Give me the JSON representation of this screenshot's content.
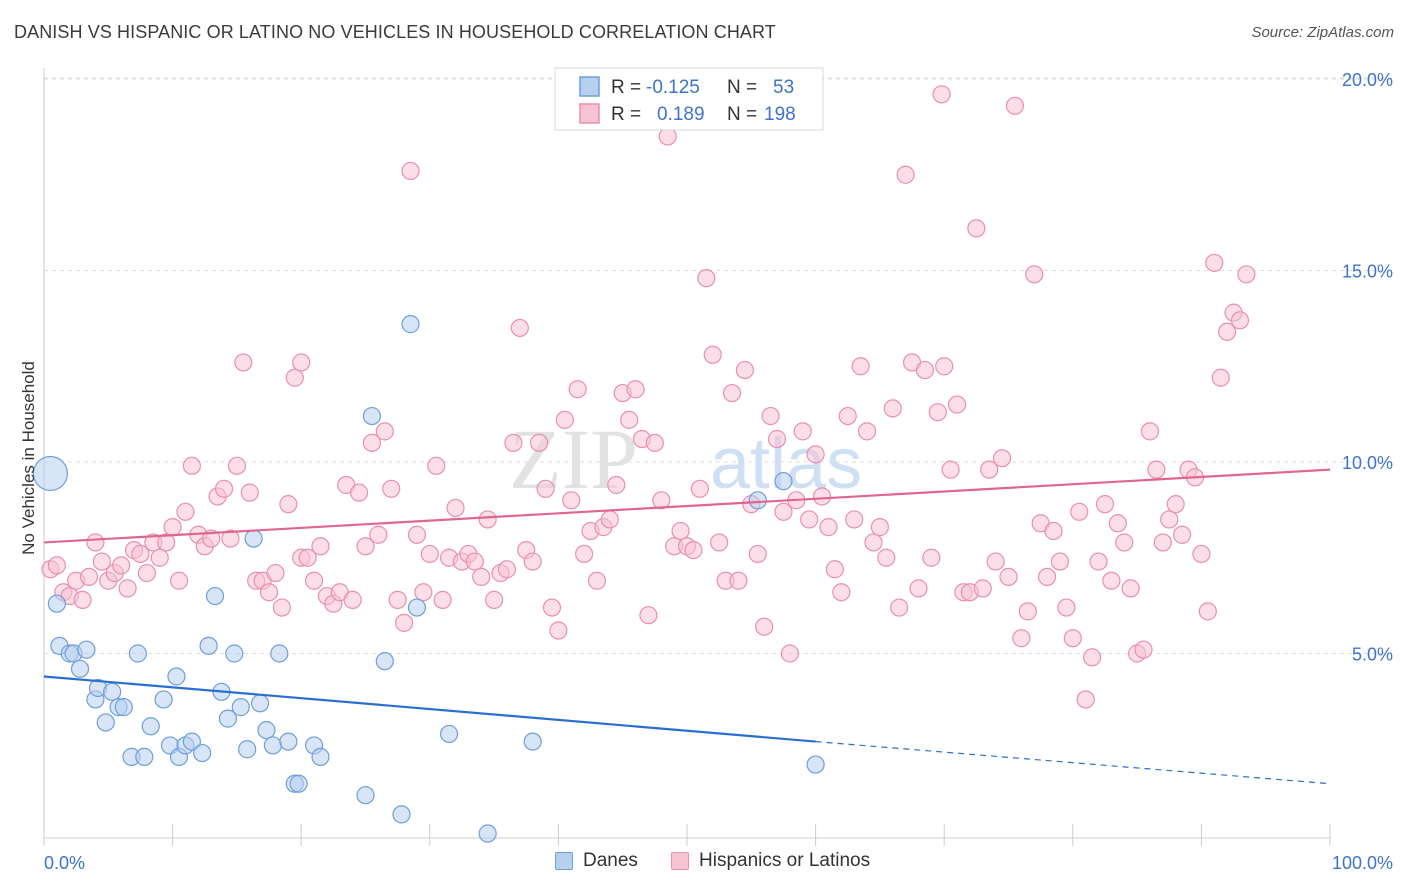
{
  "header": {
    "title": "DANISH VS HISPANIC OR LATINO NO VEHICLES IN HOUSEHOLD CORRELATION CHART",
    "source": "Source: ZipAtlas.com"
  },
  "watermark": {
    "part1": "ZIP",
    "part2": "atlas"
  },
  "colors": {
    "danes_fill": "#b8d0f0",
    "danes_stroke": "#6e9fd8",
    "danes_line": "#2a6fd0",
    "hisp_fill": "#f7c3d3",
    "hisp_stroke": "#e890ad",
    "hisp_line": "#e0668f",
    "value_text": "#3d74c9",
    "grid": "#dedede"
  },
  "legend": {
    "rows": [
      {
        "r_label": "R =",
        "r_value": "-0.125",
        "n_label": "N =",
        "n_value": "53"
      },
      {
        "r_label": "R =",
        "r_value": "0.189",
        "n_label": "N =",
        "n_value": "198"
      }
    ]
  },
  "bottom_legend": {
    "danes": "Danes",
    "hisp": "Hispanics or Latinos"
  },
  "chart_data": {
    "type": "scatter",
    "title": "DANISH VS HISPANIC OR LATINO NO VEHICLES IN HOUSEHOLD CORRELATION CHART",
    "xlabel": "",
    "ylabel": "No Vehicles in Household",
    "xlim": [
      0,
      100
    ],
    "ylim": [
      0,
      20.5
    ],
    "x_tick_labels": [
      "0.0%",
      "100.0%"
    ],
    "y_ticks": [
      5,
      10,
      15,
      20
    ],
    "y_tick_labels": [
      "5.0%",
      "10.0%",
      "15.0%",
      "20.0%"
    ],
    "grid": "horizontal dashed",
    "legend_position": "top-center",
    "series": [
      {
        "name": "Danes",
        "r": -0.125,
        "n": 53,
        "trend": {
          "x0": 0,
          "y0": 4.4,
          "x1": 60,
          "y1": 2.7,
          "dash_to_x": 100,
          "dash_to_y": 1.6
        },
        "points": [
          [
            0.5,
            9.7,
            "large"
          ],
          [
            1,
            6.3
          ],
          [
            1.2,
            5.2
          ],
          [
            2,
            5.0
          ],
          [
            2.3,
            5.0
          ],
          [
            2.8,
            4.6
          ],
          [
            3.3,
            5.1
          ],
          [
            4,
            3.8
          ],
          [
            4.2,
            4.1
          ],
          [
            4.8,
            3.2
          ],
          [
            5.3,
            4.0
          ],
          [
            5.8,
            3.6
          ],
          [
            6.2,
            3.6
          ],
          [
            6.8,
            2.3
          ],
          [
            7.3,
            5.0
          ],
          [
            7.8,
            2.3
          ],
          [
            8.3,
            3.1
          ],
          [
            9.3,
            3.8
          ],
          [
            9.8,
            2.6
          ],
          [
            10.3,
            4.4
          ],
          [
            10.5,
            2.3
          ],
          [
            11,
            2.6
          ],
          [
            11.5,
            2.7
          ],
          [
            12.3,
            2.4
          ],
          [
            12.8,
            5.2
          ],
          [
            13.3,
            6.5
          ],
          [
            13.8,
            4.0
          ],
          [
            14.3,
            3.3
          ],
          [
            14.8,
            5.0
          ],
          [
            15.3,
            3.6
          ],
          [
            15.8,
            2.5
          ],
          [
            16.3,
            8.0
          ],
          [
            16.8,
            3.7
          ],
          [
            17.3,
            3.0
          ],
          [
            17.8,
            2.6
          ],
          [
            18.3,
            5.0
          ],
          [
            19.0,
            2.7
          ],
          [
            19.5,
            1.6
          ],
          [
            19.8,
            1.6
          ],
          [
            21.0,
            2.6
          ],
          [
            21.5,
            2.3
          ],
          [
            25.0,
            1.3
          ],
          [
            25.5,
            11.2
          ],
          [
            26.5,
            4.8
          ],
          [
            27.8,
            0.8
          ],
          [
            28.5,
            13.6
          ],
          [
            29.0,
            6.2
          ],
          [
            31.5,
            2.9
          ],
          [
            34.5,
            0.3
          ],
          [
            38.0,
            2.7
          ],
          [
            60.0,
            2.1
          ],
          [
            57.5,
            9.5
          ],
          [
            55.5,
            9.0
          ]
        ]
      },
      {
        "name": "Hispanics or Latinos",
        "r": 0.189,
        "n": 198,
        "trend": {
          "x0": 0,
          "y0": 7.9,
          "x1": 100,
          "y1": 9.8
        },
        "points": [
          [
            0.5,
            7.2
          ],
          [
            1,
            7.3
          ],
          [
            1.5,
            6.6
          ],
          [
            2,
            6.5
          ],
          [
            2.5,
            6.9
          ],
          [
            3,
            6.4
          ],
          [
            3.5,
            7.0
          ],
          [
            4,
            7.9
          ],
          [
            4.5,
            7.4
          ],
          [
            5,
            6.9
          ],
          [
            5.5,
            7.1
          ],
          [
            6,
            7.3
          ],
          [
            6.5,
            6.7
          ],
          [
            7,
            7.7
          ],
          [
            7.5,
            7.6
          ],
          [
            8,
            7.1
          ],
          [
            8.5,
            7.9
          ],
          [
            9,
            7.5
          ],
          [
            9.5,
            7.9
          ],
          [
            10,
            8.3
          ],
          [
            10.5,
            6.9
          ],
          [
            11,
            8.7
          ],
          [
            11.5,
            9.9
          ],
          [
            12,
            8.1
          ],
          [
            12.5,
            7.8
          ],
          [
            13,
            8.0
          ],
          [
            13.5,
            9.1
          ],
          [
            14,
            9.3
          ],
          [
            14.5,
            8.0
          ],
          [
            15,
            9.9
          ],
          [
            15.5,
            12.6
          ],
          [
            16,
            9.2
          ],
          [
            16.5,
            6.9
          ],
          [
            17,
            6.9
          ],
          [
            17.5,
            6.6
          ],
          [
            18,
            7.1
          ],
          [
            18.5,
            6.2
          ],
          [
            19,
            8.9
          ],
          [
            19.5,
            12.2
          ],
          [
            20,
            7.5
          ],
          [
            20.5,
            7.5
          ],
          [
            21,
            6.9
          ],
          [
            21.5,
            7.8
          ],
          [
            22,
            6.5
          ],
          [
            22.5,
            6.3
          ],
          [
            23,
            6.6
          ],
          [
            23.5,
            9.4
          ],
          [
            24,
            6.4
          ],
          [
            24.5,
            9.2
          ],
          [
            25,
            7.8
          ],
          [
            25.5,
            10.5
          ],
          [
            26,
            8.1
          ],
          [
            26.5,
            10.8
          ],
          [
            27,
            9.3
          ],
          [
            27.5,
            6.4
          ],
          [
            28,
            5.8
          ],
          [
            28.5,
            17.6
          ],
          [
            29,
            8.1
          ],
          [
            29.5,
            6.6
          ],
          [
            30,
            7.6
          ],
          [
            30.5,
            9.9
          ],
          [
            31,
            6.4
          ],
          [
            31.5,
            7.5
          ],
          [
            32,
            8.8
          ],
          [
            32.5,
            7.4
          ],
          [
            33,
            7.6
          ],
          [
            33.5,
            7.4
          ],
          [
            34,
            7.0
          ],
          [
            34.5,
            8.5
          ],
          [
            35,
            6.4
          ],
          [
            35.5,
            7.1
          ],
          [
            36,
            7.2
          ],
          [
            36.5,
            10.5
          ],
          [
            37,
            13.5
          ],
          [
            37.5,
            7.7
          ],
          [
            38,
            7.4
          ],
          [
            38.5,
            10.5
          ],
          [
            39,
            9.3
          ],
          [
            39.5,
            6.2
          ],
          [
            40,
            5.6
          ],
          [
            40.5,
            11.1
          ],
          [
            41,
            9.0
          ],
          [
            41.5,
            11.9
          ],
          [
            42,
            7.6
          ],
          [
            42.5,
            8.2
          ],
          [
            43,
            6.9
          ],
          [
            43.5,
            8.3
          ],
          [
            44,
            8.5
          ],
          [
            44.5,
            9.4
          ],
          [
            45,
            11.8
          ],
          [
            45.5,
            11.1
          ],
          [
            46,
            11.9
          ],
          [
            46.5,
            10.6
          ],
          [
            47,
            6.0
          ],
          [
            47.5,
            10.5
          ],
          [
            48,
            9.0
          ],
          [
            48.5,
            18.5
          ],
          [
            49,
            7.8
          ],
          [
            49.5,
            8.2
          ],
          [
            50,
            7.8
          ],
          [
            50.5,
            7.7
          ],
          [
            51,
            9.3
          ],
          [
            51.5,
            14.8
          ],
          [
            52,
            12.8
          ],
          [
            52.5,
            7.9
          ],
          [
            53,
            6.9
          ],
          [
            53.5,
            11.8
          ],
          [
            54,
            6.9
          ],
          [
            54.5,
            12.4
          ],
          [
            55,
            8.9
          ],
          [
            55.5,
            7.6
          ],
          [
            56,
            5.7
          ],
          [
            56.5,
            11.2
          ],
          [
            57,
            10.6
          ],
          [
            57.5,
            8.7
          ],
          [
            58,
            5.0
          ],
          [
            58.5,
            9.0
          ],
          [
            59,
            10.8
          ],
          [
            59.5,
            8.5
          ],
          [
            60,
            10.2
          ],
          [
            60.5,
            9.1
          ],
          [
            61,
            8.3
          ],
          [
            61.5,
            7.2
          ],
          [
            62,
            6.6
          ],
          [
            62.5,
            11.2
          ],
          [
            63,
            8.5
          ],
          [
            63.5,
            12.5
          ],
          [
            64,
            10.8
          ],
          [
            64.5,
            7.9
          ],
          [
            65,
            8.3
          ],
          [
            65.5,
            7.5
          ],
          [
            66,
            11.4
          ],
          [
            66.5,
            6.2
          ],
          [
            67,
            17.5
          ],
          [
            67.5,
            12.6
          ],
          [
            68,
            6.7
          ],
          [
            68.5,
            12.4
          ],
          [
            69,
            7.5
          ],
          [
            69.5,
            11.3
          ],
          [
            70,
            12.5
          ],
          [
            70.5,
            9.8
          ],
          [
            71,
            11.5
          ],
          [
            71.5,
            6.6
          ],
          [
            72,
            6.6
          ],
          [
            72.5,
            16.1
          ],
          [
            73,
            6.7
          ],
          [
            73.5,
            9.8
          ],
          [
            74,
            7.4
          ],
          [
            74.5,
            10.1
          ],
          [
            75,
            7.0
          ],
          [
            75.5,
            19.3
          ],
          [
            76,
            5.4
          ],
          [
            76.5,
            6.1
          ],
          [
            77,
            14.9
          ],
          [
            77.5,
            8.4
          ],
          [
            78,
            7.0
          ],
          [
            78.5,
            8.2
          ],
          [
            79,
            7.4
          ],
          [
            79.5,
            6.2
          ],
          [
            80,
            5.4
          ],
          [
            80.5,
            8.7
          ],
          [
            81,
            3.8
          ],
          [
            81.5,
            4.9
          ],
          [
            82,
            7.4
          ],
          [
            82.5,
            8.9
          ],
          [
            83,
            6.9
          ],
          [
            83.5,
            8.4
          ],
          [
            84,
            7.9
          ],
          [
            84.5,
            6.7
          ],
          [
            85,
            5.0
          ],
          [
            85.5,
            5.1
          ],
          [
            86,
            10.8
          ],
          [
            86.5,
            9.8
          ],
          [
            87,
            7.9
          ],
          [
            87.5,
            8.5
          ],
          [
            88,
            8.9
          ],
          [
            88.5,
            8.1
          ],
          [
            89,
            9.8
          ],
          [
            89.5,
            9.6
          ],
          [
            90,
            7.6
          ],
          [
            90.5,
            6.1
          ],
          [
            91,
            15.2
          ],
          [
            91.5,
            12.2
          ],
          [
            92,
            13.4
          ],
          [
            92.5,
            13.9
          ],
          [
            93,
            13.7
          ],
          [
            93.5,
            14.9
          ],
          [
            54.8,
            19.9
          ],
          [
            69.8,
            19.6
          ],
          [
            20,
            12.6
          ]
        ]
      }
    ]
  }
}
